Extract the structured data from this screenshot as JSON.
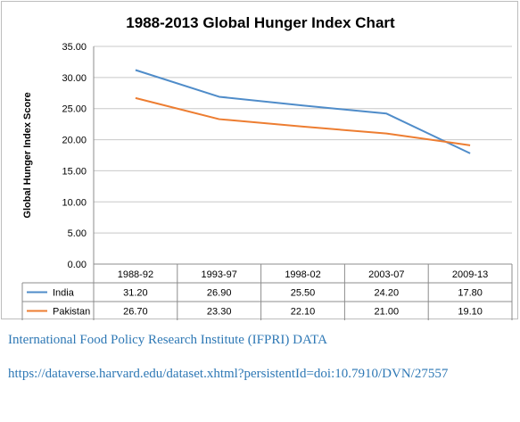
{
  "chart_data": {
    "type": "line",
    "title": "1988-2013 Global Hunger Index Chart",
    "ylabel": "Global Hunger Index Score",
    "xlabel": "",
    "ylim": [
      0,
      35
    ],
    "yticks": [
      "0.00",
      "5.00",
      "10.00",
      "15.00",
      "20.00",
      "25.00",
      "30.00",
      "35.00"
    ],
    "categories": [
      "1988-92",
      "1993-97",
      "1998-02",
      "2003-07",
      "2009-13"
    ],
    "series": [
      {
        "name": "India",
        "color": "#4f8cc9",
        "values": [
          31.2,
          26.9,
          25.5,
          24.2,
          17.8
        ],
        "labels": [
          "31.20",
          "26.90",
          "25.50",
          "24.20",
          "17.80"
        ]
      },
      {
        "name": "Pakistan",
        "color": "#ed7d31",
        "values": [
          26.7,
          23.3,
          22.1,
          21.0,
          19.1
        ],
        "labels": [
          "26.70",
          "23.30",
          "22.10",
          "21.00",
          "19.10"
        ]
      }
    ],
    "grid": true,
    "legend": "data-table"
  },
  "footer": {
    "org": "International Food Policy Research Institute (IFPRI) DATA",
    "url": "https://dataverse.harvard.edu/dataset.xhtml?persistentId=doi:10.7910/DVN/27557"
  }
}
